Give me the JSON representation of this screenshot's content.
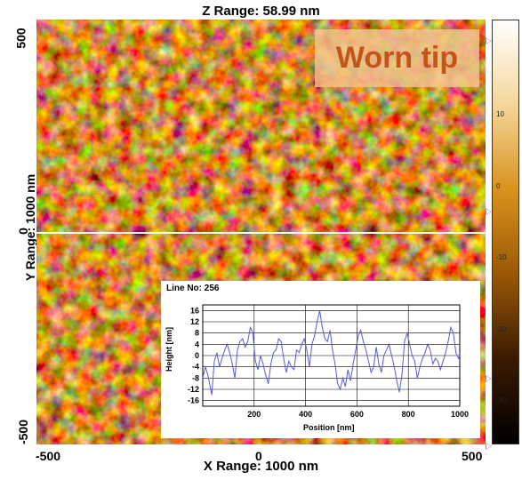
{
  "header": {
    "z_range": "Z Range:  58.99 nm"
  },
  "axes": {
    "y_title": "Y Range: 1000 nm",
    "x_title": "X Range: 1000 nm",
    "y_ticks": [
      "500",
      "0",
      "-500"
    ],
    "x_ticks": [
      "-500",
      "0",
      "500"
    ]
  },
  "badge": {
    "text": "Worn tip"
  },
  "colorbar": {
    "ticks": [
      "10",
      "0",
      "-10",
      "-20",
      "-30"
    ],
    "colors": [
      "#ffffff",
      "#f5d69a",
      "#d9921c",
      "#9a5807",
      "#3a1a00",
      "#000000"
    ]
  },
  "image": {
    "colors": {
      "low": "#2a1200",
      "mid": "#b06a09",
      "high": "#fff0b0"
    }
  },
  "inset": {
    "title": "Line No: 256",
    "xlabel": "Position [nm]",
    "ylabel": "Height [nm]",
    "yticks": [
      "16",
      "12",
      "8",
      "4",
      "0",
      "-4",
      "-8",
      "-12",
      "-16"
    ],
    "xticks": [
      "200",
      "400",
      "600",
      "800",
      "1000"
    ],
    "line_color": "#5a5ad6"
  },
  "chart_data": {
    "type": "line",
    "title": "Line No: 256",
    "xlabel": "Position [nm]",
    "ylabel": "Height [nm]",
    "xlim": [
      0,
      1000
    ],
    "ylim": [
      -18,
      18
    ],
    "grid": true,
    "series": [
      {
        "values": [
          [
            0,
            -8
          ],
          [
            10,
            -4
          ],
          [
            20,
            -7
          ],
          [
            35,
            -14
          ],
          [
            45,
            -2
          ],
          [
            55,
            1
          ],
          [
            65,
            -4
          ],
          [
            75,
            -1
          ],
          [
            85,
            2
          ],
          [
            95,
            4
          ],
          [
            105,
            1
          ],
          [
            115,
            -3
          ],
          [
            125,
            -8
          ],
          [
            135,
            2
          ],
          [
            145,
            5
          ],
          [
            155,
            6
          ],
          [
            165,
            3
          ],
          [
            175,
            5
          ],
          [
            185,
            10
          ],
          [
            195,
            8
          ],
          [
            205,
            -2
          ],
          [
            215,
            -5
          ],
          [
            225,
            0
          ],
          [
            235,
            -3
          ],
          [
            245,
            -7
          ],
          [
            255,
            -10
          ],
          [
            265,
            -3
          ],
          [
            275,
            1
          ],
          [
            285,
            2
          ],
          [
            295,
            6
          ],
          [
            305,
            5
          ],
          [
            315,
            -1
          ],
          [
            325,
            -6
          ],
          [
            335,
            -2
          ],
          [
            345,
            -4
          ],
          [
            355,
            -5
          ],
          [
            365,
            2
          ],
          [
            375,
            1
          ],
          [
            385,
            4
          ],
          [
            395,
            6
          ],
          [
            405,
            2
          ],
          [
            415,
            -4
          ],
          [
            425,
            4
          ],
          [
            435,
            7
          ],
          [
            445,
            12
          ],
          [
            455,
            16
          ],
          [
            465,
            10
          ],
          [
            475,
            6
          ],
          [
            485,
            5
          ],
          [
            495,
            9
          ],
          [
            505,
            2
          ],
          [
            515,
            -3
          ],
          [
            525,
            -10
          ],
          [
            535,
            -12
          ],
          [
            545,
            -8
          ],
          [
            555,
            -11
          ],
          [
            565,
            -5
          ],
          [
            575,
            -9
          ],
          [
            585,
            -3
          ],
          [
            595,
            2
          ],
          [
            605,
            7
          ],
          [
            615,
            9
          ],
          [
            625,
            5
          ],
          [
            635,
            2
          ],
          [
            645,
            -2
          ],
          [
            655,
            -6
          ],
          [
            665,
            -4
          ],
          [
            675,
            3
          ],
          [
            685,
            -3
          ],
          [
            695,
            -6
          ],
          [
            705,
            0
          ],
          [
            715,
            2
          ],
          [
            725,
            4
          ],
          [
            735,
            0
          ],
          [
            745,
            -4
          ],
          [
            755,
            -9
          ],
          [
            765,
            -13
          ],
          [
            775,
            -7
          ],
          [
            785,
            5
          ],
          [
            795,
            8
          ],
          [
            805,
            4
          ],
          [
            815,
            0
          ],
          [
            825,
            -2
          ],
          [
            835,
            -8
          ],
          [
            845,
            -4
          ],
          [
            855,
            -1
          ],
          [
            865,
            1
          ],
          [
            875,
            4
          ],
          [
            885,
            2
          ],
          [
            895,
            -3
          ],
          [
            905,
            -1
          ],
          [
            915,
            -2
          ],
          [
            925,
            -5
          ],
          [
            935,
            -2
          ],
          [
            945,
            1
          ],
          [
            955,
            5
          ],
          [
            965,
            10
          ],
          [
            975,
            8
          ],
          [
            985,
            1
          ],
          [
            995,
            -1
          ],
          [
            1000,
            0
          ]
        ]
      }
    ]
  }
}
